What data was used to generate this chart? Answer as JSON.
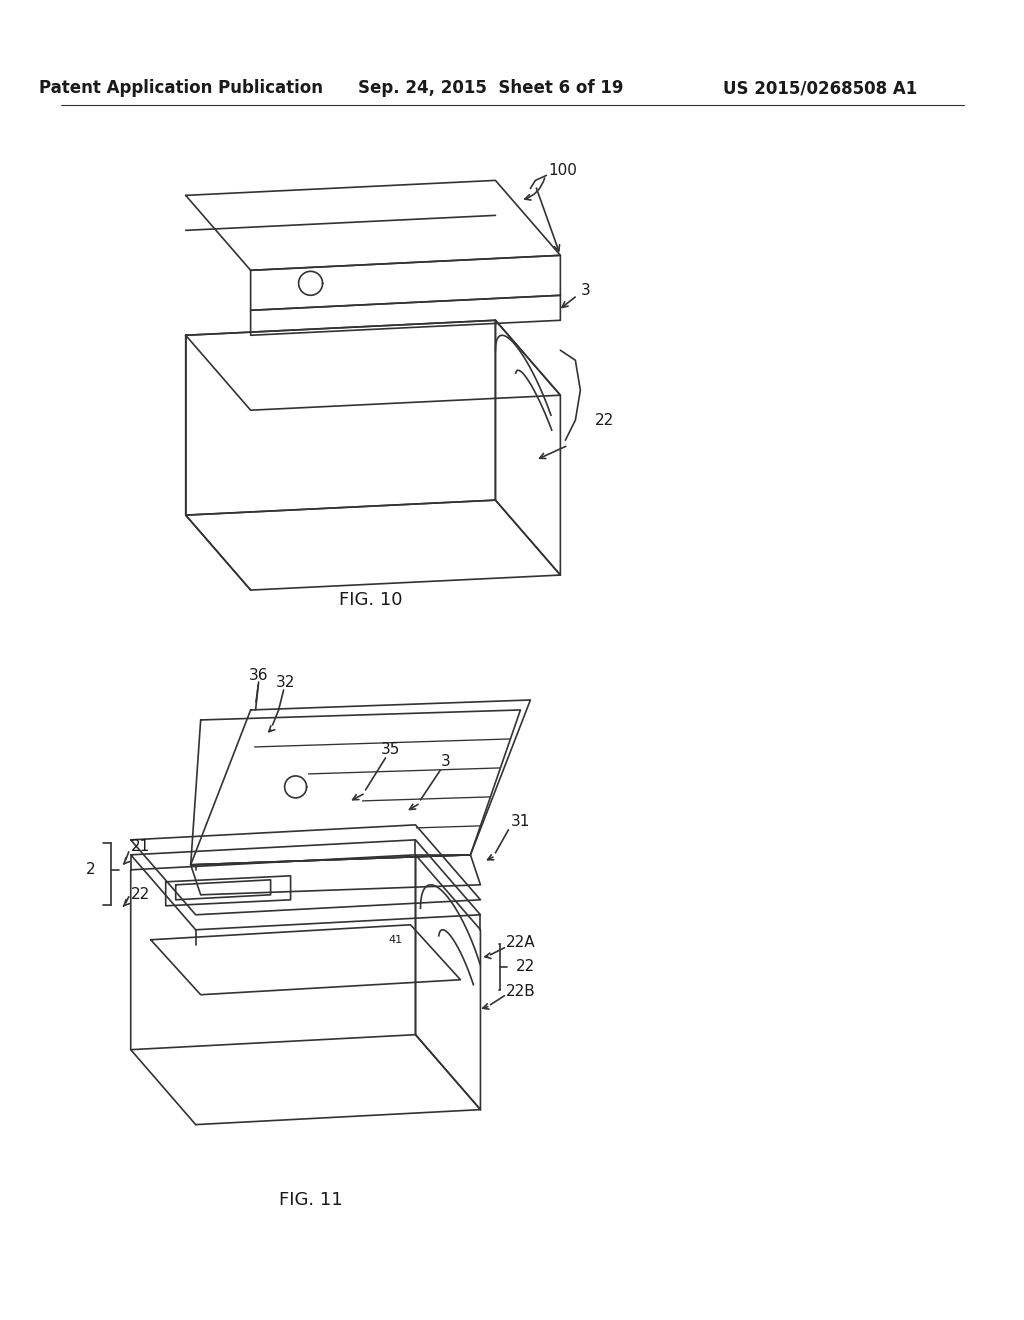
{
  "bg_color": "#ffffff",
  "line_color": "#333333",
  "text_color": "#1a1a1a",
  "header_left": "Patent Application Publication",
  "header_center": "Sep. 24, 2015  Sheet 6 of 19",
  "header_right": "US 2015/0268508 A1",
  "fig10_label": "FIG. 10",
  "fig11_label": "FIG. 11",
  "lw": 1.2
}
